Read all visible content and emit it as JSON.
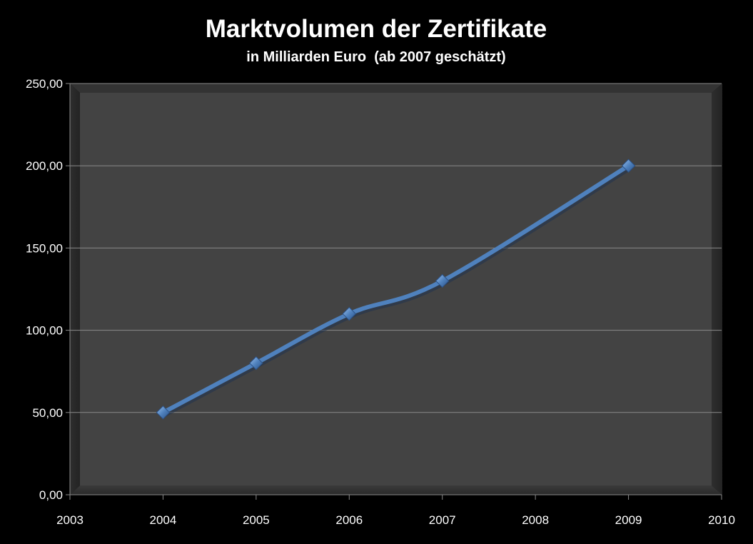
{
  "chart_data": {
    "type": "line",
    "title": "Marktvolumen der Zertifikate",
    "subtitle": "in Milliarden Euro  (ab 2007 geschätzt)",
    "xlabel": "",
    "ylabel": "",
    "x_ticks": [
      "2003",
      "2004",
      "2005",
      "2006",
      "2007",
      "2008",
      "2009",
      "2010"
    ],
    "xlim": [
      2003,
      2010
    ],
    "y_ticks": [
      "0,00",
      "50,00",
      "100,00",
      "150,00",
      "200,00",
      "250,00"
    ],
    "ylim": [
      0,
      250
    ],
    "grid": true,
    "smoothed": true,
    "series": [
      {
        "x": [
          2004,
          2005,
          2006,
          2007,
          2009
        ],
        "values": [
          50,
          80,
          110,
          130,
          200
        ],
        "color": "#4f81bd",
        "marker": "diamond"
      }
    ]
  }
}
